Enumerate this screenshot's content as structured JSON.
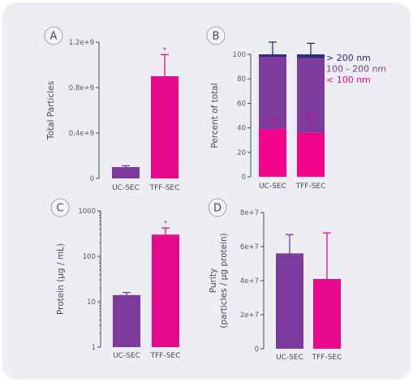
{
  "colors": {
    "uc_sec": "#7b3a9c",
    "tff_sec": "#e8088c",
    "over200": "#2e2f7a",
    "mid": "#7b3a9c",
    "under100": "#f0058a",
    "axis": "#444a5a",
    "circle_fill": "#f4f4f8",
    "circle_stroke": "#8a8fa0"
  },
  "chart_data": [
    {
      "panel": "A",
      "type": "bar",
      "categories": [
        "UC-SEC",
        "TFF-SEC"
      ],
      "values": [
        100000000.0,
        900000000.0
      ],
      "errors": [
        12000000.0,
        190000000.0
      ],
      "ylabel": "Total Particles",
      "ylim": [
        0,
        1200000000.0
      ],
      "yticks": [
        0,
        400000000.0,
        800000000.0,
        1200000000.0
      ],
      "ytick_labels": [
        "0",
        "0.4e+9",
        "0.8e+9",
        "1.2e+9"
      ],
      "annotations": [
        "",
        "*"
      ]
    },
    {
      "panel": "B",
      "type": "bar",
      "stacked": true,
      "categories": [
        "UC-SEC",
        "TFF-SEC"
      ],
      "series": [
        {
          "name": "< 100 nm",
          "values": [
            39,
            36
          ],
          "errors": [
            9,
            14
          ]
        },
        {
          "name": "100 - 200 nm",
          "values": [
            59,
            61
          ],
          "errors": [
            0,
            0
          ]
        },
        {
          "name": "> 200 nm",
          "values": [
            2,
            3
          ],
          "errors": [
            10,
            9
          ]
        }
      ],
      "ylabel": "Percent of total",
      "ylim": [
        0,
        100
      ],
      "yticks": [
        0,
        20,
        40,
        60,
        80,
        100
      ],
      "ytick_labels": [
        "0",
        "20",
        "40",
        "60",
        "80",
        "100"
      ],
      "legend_position": "right"
    },
    {
      "panel": "C",
      "type": "bar",
      "categories": [
        "UC-SEC",
        "TFF-SEC"
      ],
      "values": [
        14,
        300
      ],
      "errors": [
        2,
        120
      ],
      "ylabel": "Protein (µg / mL)",
      "yscale": "log",
      "ylim": [
        1,
        1000
      ],
      "yticks": [
        1,
        10,
        100,
        1000
      ],
      "ytick_labels": [
        "1",
        "10",
        "100",
        "1000"
      ],
      "annotations": [
        "",
        "*"
      ]
    },
    {
      "panel": "D",
      "type": "bar",
      "categories": [
        "UC-SEC",
        "TFF-SEC"
      ],
      "values": [
        56000000.0,
        41000000.0
      ],
      "errors": [
        11000000.0,
        27000000.0
      ],
      "ylabel": "Purity\n(particles / µg protein)",
      "ylim": [
        0,
        80000000.0
      ],
      "yticks": [
        0,
        20000000.0,
        40000000.0,
        60000000.0,
        80000000.0
      ],
      "ytick_labels": [
        "0",
        "2e+7",
        "4e+7",
        "6e+7",
        "8e+7"
      ]
    }
  ]
}
